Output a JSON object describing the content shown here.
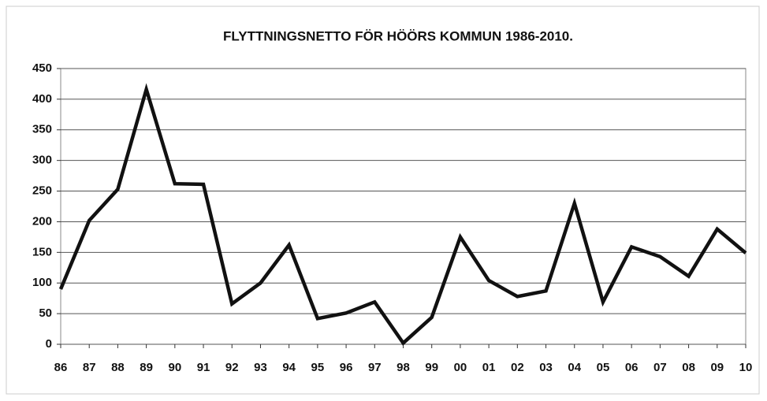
{
  "chart_data": {
    "type": "line",
    "title": "FLYTTNINGSNETTO FÖR HÖÖRS KOMMUN 1986-2010.",
    "categories": [
      "86",
      "87",
      "88",
      "89",
      "90",
      "91",
      "92",
      "93",
      "94",
      "95",
      "96",
      "97",
      "98",
      "99",
      "00",
      "01",
      "02",
      "03",
      "04",
      "05",
      "06",
      "07",
      "08",
      "09",
      "10"
    ],
    "values": [
      90,
      202,
      253,
      416,
      262,
      261,
      66,
      100,
      162,
      42,
      51,
      69,
      2,
      44,
      175,
      104,
      78,
      87,
      230,
      69,
      159,
      143,
      111,
      188,
      149
    ],
    "color": "#111111",
    "ylim": [
      0,
      450
    ],
    "yticks": [
      0,
      50,
      100,
      150,
      200,
      250,
      300,
      350,
      400,
      450
    ],
    "grid": true
  }
}
